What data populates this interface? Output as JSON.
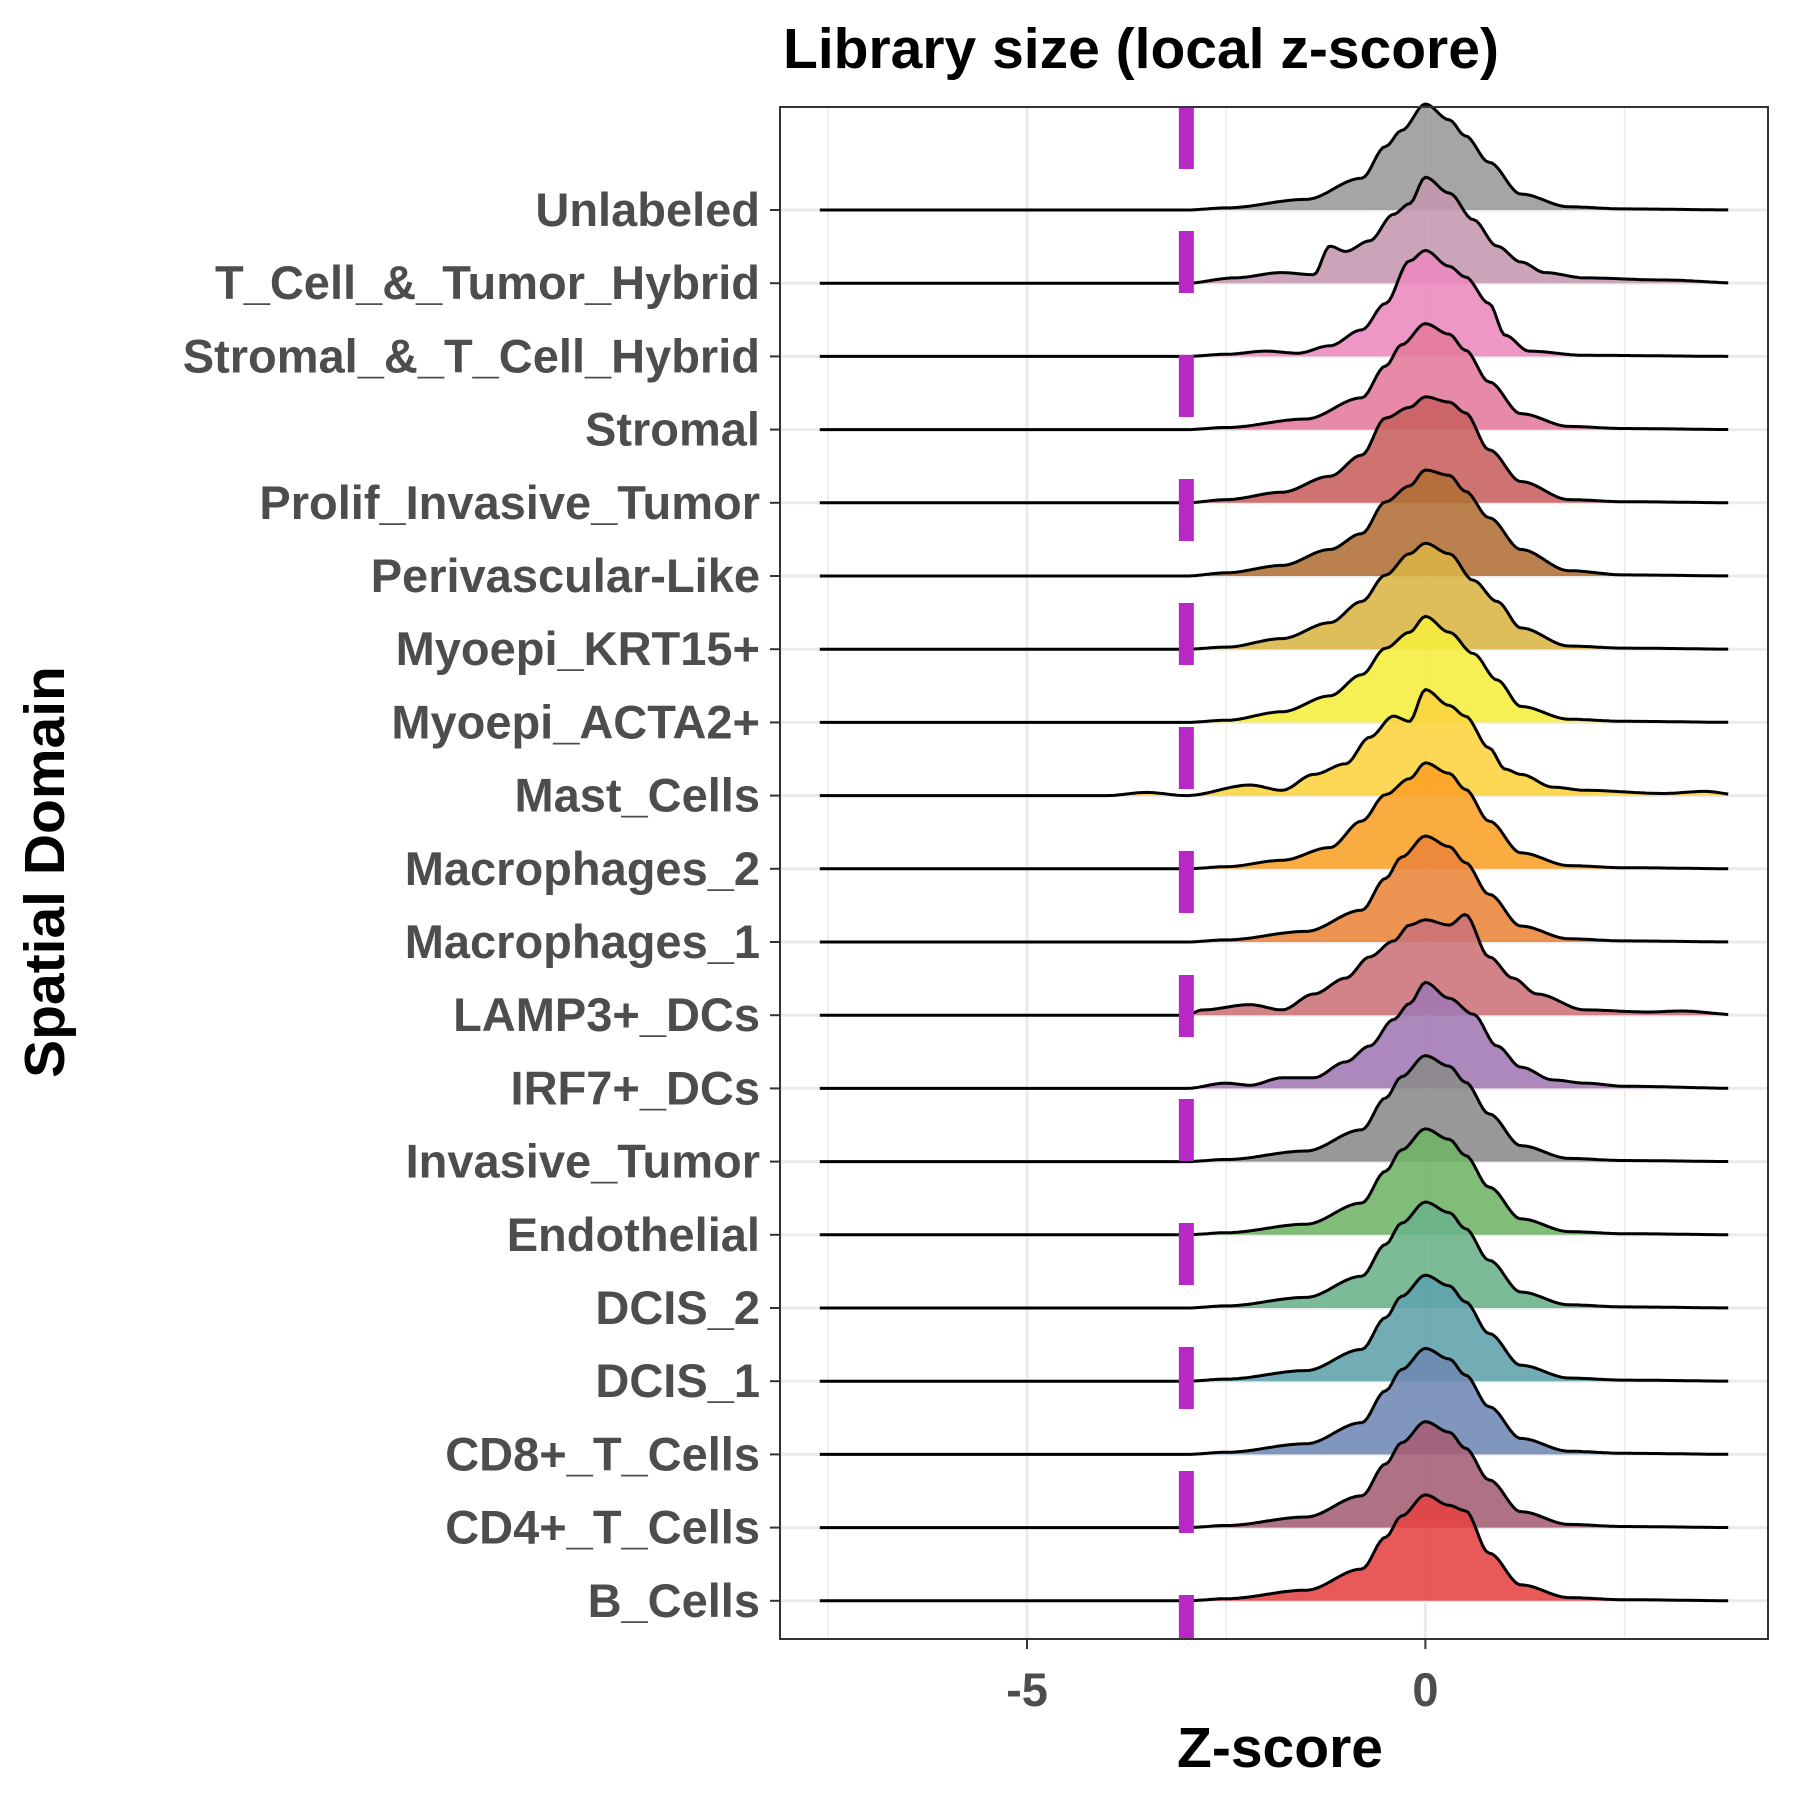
{
  "chart_data": {
    "type": "ridgeline",
    "title": "Library size (local z-score)",
    "xlabel": "Z-score",
    "ylabel": "Spatial Domain",
    "xlim": [
      -8.1,
      4.3
    ],
    "x_ticks": [
      -5,
      0
    ],
    "x_tick_labels": [
      "-5",
      "0"
    ],
    "x_minor_gridlines": [
      -7.5,
      -2.5,
      2.5
    ],
    "threshold": {
      "value": -3.0,
      "style": "dashed",
      "color": "#b728c6"
    },
    "grid": true,
    "categories_top_to_bottom": [
      "Unlabeled",
      "T_Cell_&_Tumor_Hybrid",
      "Stromal_&_T_Cell_Hybrid",
      "Stromal",
      "Prolif_Invasive_Tumor",
      "Perivascular-Like",
      "Myoepi_KRT15+",
      "Myoepi_ACTA2+",
      "Mast_Cells",
      "Macrophages_2",
      "Macrophages_1",
      "LAMP3+_DCs",
      "IRF7+_DCs",
      "Invasive_Tumor",
      "Endothelial",
      "DCIS_2",
      "DCIS_1",
      "CD8+_T_Cells",
      "CD4+_T_Cells",
      "B_Cells"
    ],
    "series": [
      {
        "name": "Unlabeled",
        "color": "#999999",
        "x": [
          -8.0,
          -3.0,
          -2.5,
          -1.5,
          -0.8,
          -0.5,
          -0.3,
          0.0,
          0.3,
          0.5,
          0.8,
          1.2,
          1.8,
          2.5,
          4.0
        ],
        "density": [
          0,
          0,
          0.02,
          0.1,
          0.3,
          0.6,
          0.75,
          1.0,
          0.85,
          0.7,
          0.45,
          0.15,
          0.03,
          0.01,
          0
        ]
      },
      {
        "name": "T_Cell_&_Tumor_Hybrid",
        "color": "#c497b1",
        "x": [
          -8.0,
          -3.0,
          -2.4,
          -1.8,
          -1.4,
          -1.2,
          -1.0,
          -0.7,
          -0.4,
          -0.2,
          0.0,
          0.3,
          0.6,
          0.9,
          1.2,
          1.5,
          2.0,
          3.0,
          4.0
        ],
        "density": [
          0,
          0,
          0.05,
          0.1,
          0.08,
          0.35,
          0.3,
          0.4,
          0.65,
          0.75,
          1.0,
          0.85,
          0.6,
          0.35,
          0.2,
          0.1,
          0.05,
          0.03,
          0
        ]
      },
      {
        "name": "Stromal_&_T_Cell_Hybrid",
        "color": "#ec88be",
        "x": [
          -8.0,
          -3.0,
          -2.5,
          -2.0,
          -1.6,
          -1.2,
          -0.8,
          -0.5,
          -0.2,
          0.0,
          0.3,
          0.5,
          0.8,
          1.0,
          1.3,
          2.0,
          4.0
        ],
        "density": [
          0,
          0,
          0.02,
          0.05,
          0.03,
          0.1,
          0.25,
          0.5,
          0.9,
          1.0,
          0.85,
          0.75,
          0.5,
          0.2,
          0.05,
          0.01,
          0
        ]
      },
      {
        "name": "Stromal",
        "color": "#e47a9b",
        "x": [
          -8.0,
          -3.0,
          -2.5,
          -1.5,
          -0.8,
          -0.5,
          -0.3,
          0.0,
          0.3,
          0.5,
          0.8,
          1.2,
          1.8,
          2.5,
          4.0
        ],
        "density": [
          0,
          0,
          0.02,
          0.1,
          0.3,
          0.6,
          0.8,
          1.0,
          0.9,
          0.75,
          0.45,
          0.15,
          0.03,
          0.01,
          0
        ]
      },
      {
        "name": "Prolif_Invasive_Tumor",
        "color": "#c8605e",
        "x": [
          -8.0,
          -3.0,
          -2.5,
          -1.8,
          -1.2,
          -0.8,
          -0.5,
          -0.2,
          0.0,
          0.3,
          0.5,
          0.8,
          1.2,
          1.8,
          2.5,
          4.0
        ],
        "density": [
          0,
          0,
          0.03,
          0.1,
          0.25,
          0.45,
          0.8,
          0.9,
          1.0,
          0.95,
          0.85,
          0.5,
          0.2,
          0.03,
          0.01,
          0
        ]
      },
      {
        "name": "Perivascular-Like",
        "color": "#b06e34",
        "x": [
          -8.0,
          -3.0,
          -2.5,
          -1.8,
          -1.2,
          -0.8,
          -0.5,
          -0.2,
          0.0,
          0.3,
          0.5,
          0.8,
          1.2,
          1.8,
          2.5,
          4.0
        ],
        "density": [
          0,
          0,
          0.03,
          0.1,
          0.25,
          0.4,
          0.7,
          0.85,
          1.0,
          0.95,
          0.8,
          0.55,
          0.25,
          0.05,
          0.01,
          0
        ]
      },
      {
        "name": "Myoepi_KRT15+",
        "color": "#d9b444",
        "x": [
          -8.0,
          -3.0,
          -2.5,
          -1.8,
          -1.2,
          -0.8,
          -0.5,
          -0.2,
          0.0,
          0.3,
          0.6,
          0.9,
          1.2,
          1.8,
          2.5,
          4.0
        ],
        "density": [
          0,
          0,
          0.02,
          0.1,
          0.25,
          0.45,
          0.7,
          0.9,
          1.0,
          0.9,
          0.65,
          0.45,
          0.2,
          0.03,
          0.01,
          0
        ]
      },
      {
        "name": "Myoepi_ACTA2+",
        "color": "#f6ee3d",
        "x": [
          -8.0,
          -3.0,
          -2.5,
          -1.8,
          -1.2,
          -0.8,
          -0.5,
          -0.2,
          0.0,
          0.3,
          0.6,
          0.9,
          1.2,
          1.8,
          2.5,
          4.0
        ],
        "density": [
          0,
          0,
          0.02,
          0.1,
          0.25,
          0.45,
          0.7,
          0.85,
          1.0,
          0.85,
          0.65,
          0.4,
          0.15,
          0.03,
          0.01,
          0
        ]
      },
      {
        "name": "Mast_Cells",
        "color": "#fcd33d",
        "x": [
          -8.0,
          -4.0,
          -3.5,
          -3.0,
          -2.2,
          -1.8,
          -1.4,
          -1.0,
          -0.7,
          -0.4,
          -0.2,
          0.0,
          0.3,
          0.5,
          0.8,
          1.0,
          1.2,
          1.6,
          2.0,
          3.0,
          3.5,
          4.0
        ],
        "density": [
          0,
          0,
          0.03,
          0,
          0.1,
          0.05,
          0.2,
          0.3,
          0.55,
          0.75,
          0.7,
          1.0,
          0.85,
          0.75,
          0.45,
          0.25,
          0.2,
          0.08,
          0.05,
          0.02,
          0.04,
          0
        ]
      },
      {
        "name": "Macrophages_2",
        "color": "#fba126",
        "x": [
          -8.0,
          -3.0,
          -2.5,
          -1.8,
          -1.2,
          -0.8,
          -0.5,
          -0.2,
          0.0,
          0.3,
          0.5,
          0.8,
          1.2,
          1.8,
          2.5,
          4.0
        ],
        "density": [
          0,
          0,
          0.02,
          0.08,
          0.2,
          0.45,
          0.7,
          0.85,
          1.0,
          0.9,
          0.75,
          0.45,
          0.15,
          0.03,
          0.01,
          0
        ]
      },
      {
        "name": "Macrophages_1",
        "color": "#ea843a",
        "x": [
          -8.0,
          -3.0,
          -2.5,
          -1.5,
          -0.8,
          -0.5,
          -0.3,
          0.0,
          0.3,
          0.5,
          0.8,
          1.2,
          1.8,
          2.5,
          4.0
        ],
        "density": [
          0,
          0,
          0.02,
          0.1,
          0.3,
          0.6,
          0.8,
          1.0,
          0.9,
          0.75,
          0.45,
          0.15,
          0.03,
          0.01,
          0
        ]
      },
      {
        "name": "LAMP3+_DCs",
        "color": "#cb7277",
        "x": [
          -8.0,
          -3.0,
          -2.8,
          -2.2,
          -1.8,
          -1.4,
          -1.0,
          -0.7,
          -0.4,
          -0.2,
          0.0,
          0.3,
          0.5,
          0.8,
          1.1,
          1.4,
          2.0,
          2.8,
          3.2,
          4.0
        ],
        "density": [
          0,
          0,
          0.05,
          0.1,
          0.05,
          0.2,
          0.35,
          0.55,
          0.7,
          0.85,
          0.9,
          0.85,
          0.95,
          0.55,
          0.35,
          0.2,
          0.05,
          0.03,
          0.04,
          0
        ]
      },
      {
        "name": "IRF7+_DCs",
        "color": "#a078b3",
        "x": [
          -8.0,
          -3.0,
          -2.5,
          -2.2,
          -1.8,
          -1.4,
          -1.0,
          -0.7,
          -0.4,
          -0.2,
          0.0,
          0.3,
          0.6,
          0.9,
          1.2,
          1.6,
          2.0,
          2.5,
          4.0
        ],
        "density": [
          0,
          0,
          0.05,
          0.03,
          0.1,
          0.1,
          0.25,
          0.4,
          0.65,
          0.8,
          1.0,
          0.85,
          0.7,
          0.4,
          0.2,
          0.08,
          0.05,
          0.02,
          0
        ]
      },
      {
        "name": "Invasive_Tumor",
        "color": "#8a8a8a",
        "x": [
          -8.0,
          -3.0,
          -2.5,
          -1.5,
          -0.8,
          -0.5,
          -0.3,
          0.0,
          0.3,
          0.5,
          0.8,
          1.2,
          1.8,
          2.5,
          4.0
        ],
        "density": [
          0,
          0,
          0.02,
          0.1,
          0.3,
          0.6,
          0.8,
          1.0,
          0.9,
          0.75,
          0.45,
          0.15,
          0.03,
          0.01,
          0
        ]
      },
      {
        "name": "Endothelial",
        "color": "#6fb467",
        "x": [
          -8.0,
          -3.0,
          -2.5,
          -1.5,
          -0.8,
          -0.5,
          -0.3,
          0.0,
          0.3,
          0.5,
          0.8,
          1.2,
          1.8,
          2.5,
          4.0
        ],
        "density": [
          0,
          0,
          0.02,
          0.1,
          0.3,
          0.6,
          0.8,
          1.0,
          0.9,
          0.75,
          0.45,
          0.15,
          0.03,
          0.01,
          0
        ]
      },
      {
        "name": "DCIS_2",
        "color": "#6ab28a",
        "x": [
          -8.0,
          -3.0,
          -2.5,
          -1.5,
          -0.8,
          -0.5,
          -0.3,
          0.0,
          0.3,
          0.5,
          0.8,
          1.2,
          1.8,
          2.5,
          4.0
        ],
        "density": [
          0,
          0,
          0.02,
          0.1,
          0.3,
          0.6,
          0.8,
          1.0,
          0.9,
          0.75,
          0.45,
          0.15,
          0.03,
          0.01,
          0
        ]
      },
      {
        "name": "DCIS_1",
        "color": "#5fa2ac",
        "x": [
          -8.0,
          -3.0,
          -2.5,
          -1.5,
          -0.8,
          -0.5,
          -0.3,
          0.0,
          0.3,
          0.5,
          0.8,
          1.2,
          1.8,
          2.5,
          4.0
        ],
        "density": [
          0,
          0,
          0.02,
          0.1,
          0.3,
          0.6,
          0.8,
          1.0,
          0.9,
          0.75,
          0.45,
          0.15,
          0.03,
          0.01,
          0
        ]
      },
      {
        "name": "CD8+_T_Cells",
        "color": "#6e87b3",
        "x": [
          -8.0,
          -3.0,
          -2.5,
          -1.5,
          -0.8,
          -0.5,
          -0.3,
          0.0,
          0.3,
          0.5,
          0.8,
          1.2,
          1.8,
          2.5,
          4.0
        ],
        "density": [
          0,
          0,
          0.02,
          0.1,
          0.3,
          0.6,
          0.8,
          1.0,
          0.9,
          0.75,
          0.45,
          0.15,
          0.03,
          0.01,
          0
        ]
      },
      {
        "name": "CD4+_T_Cells",
        "color": "#a45f73",
        "x": [
          -8.0,
          -3.0,
          -2.5,
          -1.5,
          -0.8,
          -0.5,
          -0.3,
          0.0,
          0.3,
          0.5,
          0.8,
          1.2,
          1.8,
          2.5,
          4.0
        ],
        "density": [
          0,
          0,
          0.02,
          0.1,
          0.3,
          0.6,
          0.8,
          1.0,
          0.9,
          0.75,
          0.45,
          0.15,
          0.03,
          0.01,
          0
        ]
      },
      {
        "name": "B_Cells",
        "color": "#e54243",
        "x": [
          -8.0,
          -3.0,
          -2.5,
          -1.5,
          -0.8,
          -0.5,
          -0.3,
          0.0,
          0.3,
          0.5,
          0.8,
          1.2,
          1.8,
          2.5,
          4.0
        ],
        "density": [
          0,
          0,
          0.02,
          0.1,
          0.3,
          0.6,
          0.8,
          1.0,
          0.9,
          0.85,
          0.45,
          0.15,
          0.03,
          0.01,
          0
        ]
      }
    ]
  }
}
